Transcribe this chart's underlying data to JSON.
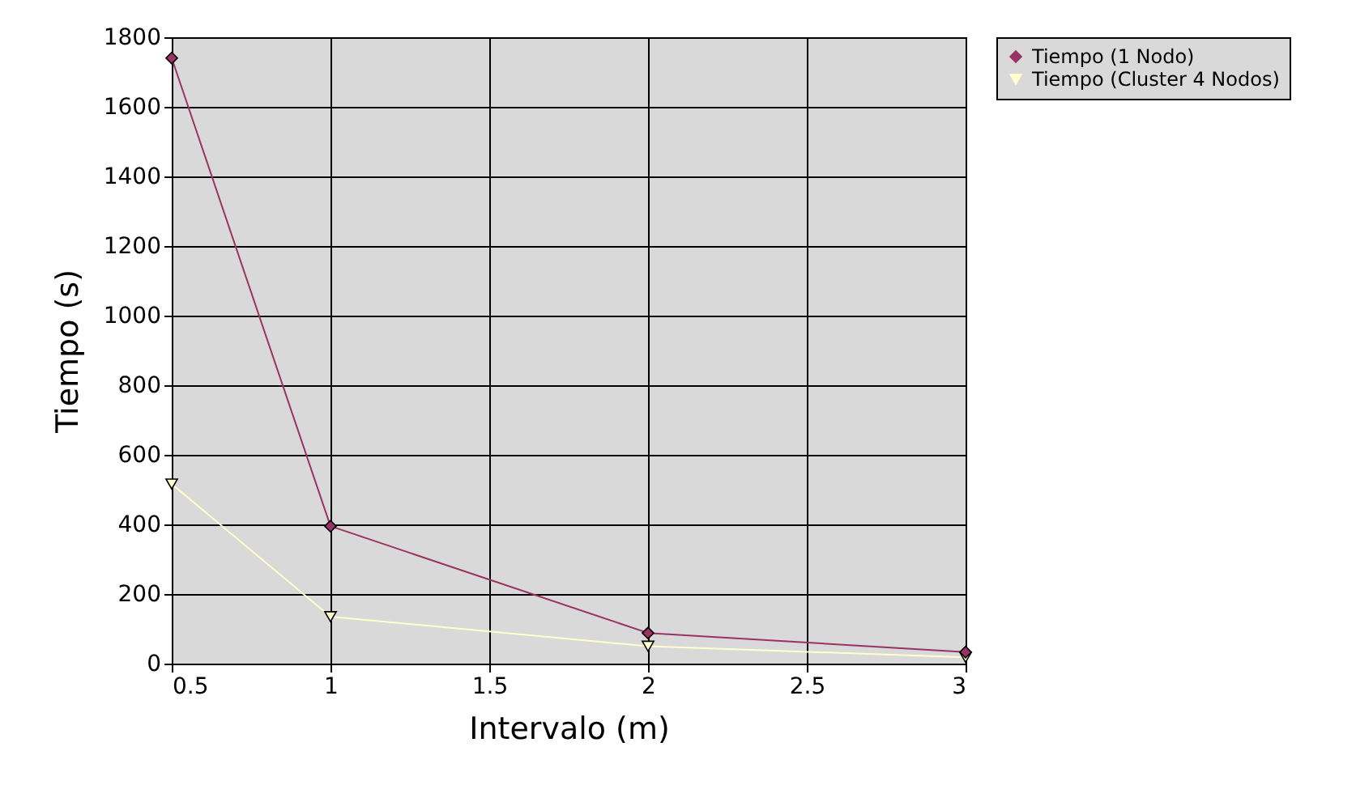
{
  "chart_data": {
    "type": "line",
    "xlabel": "Intervalo (m)",
    "ylabel": "Tiempo (s)",
    "x": [
      0.5,
      1,
      2,
      3
    ],
    "series": [
      {
        "name": "Tiempo (1 Nodo)",
        "color": "#993366",
        "marker": "diamond",
        "values": [
          1740,
          395,
          88,
          33
        ]
      },
      {
        "name": "Tiempo (Cluster 4 Nodos)",
        "color": "#ffffcc",
        "marker": "triangle",
        "values": [
          516,
          135,
          50,
          18
        ]
      }
    ],
    "xlim": [
      0.5,
      3
    ],
    "xticks": [
      0.5,
      1,
      1.5,
      2,
      2.5,
      3
    ],
    "ylim": [
      0,
      1800
    ],
    "yticks": [
      0,
      200,
      400,
      600,
      800,
      1000,
      1200,
      1400,
      1600,
      1800
    ],
    "grid": true,
    "legend": "right"
  }
}
